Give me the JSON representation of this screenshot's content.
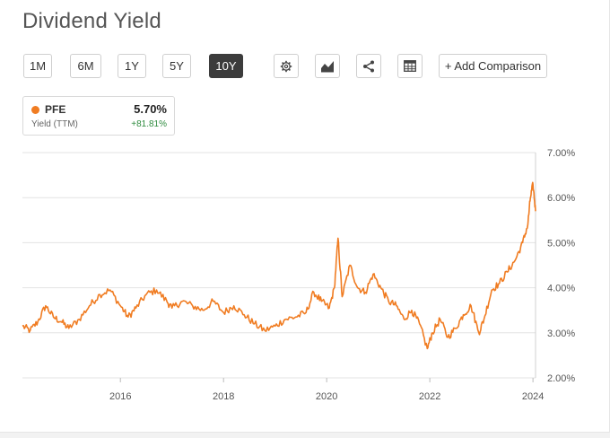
{
  "title": "Dividend Yield",
  "toolbar": {
    "ranges": [
      "1M",
      "6M",
      "1Y",
      "5Y",
      "10Y"
    ],
    "active_range": "10Y",
    "add_comparison": "+ Add Comparison",
    "icons": [
      "gear-icon",
      "chart-type-icon",
      "share-icon",
      "table-icon"
    ]
  },
  "legend": {
    "ticker": "PFE",
    "value": "5.70%",
    "label": "Yield (TTM)",
    "change": "+81.81%",
    "color": "#f07c22",
    "change_color": "#2e8b3e"
  },
  "chart_data": {
    "type": "line",
    "title": "",
    "xlabel": "",
    "ylabel": "",
    "x_ticks": [
      "2016",
      "2018",
      "2020",
      "2022",
      "2024"
    ],
    "y_ticks": [
      "7.00%",
      "6.00%",
      "5.00%",
      "4.00%",
      "3.00%",
      "2.00%"
    ],
    "ylim": [
      2.0,
      7.0
    ],
    "xlim": [
      2014.1,
      2024.05
    ],
    "grid": true,
    "series": [
      {
        "name": "PFE",
        "color": "#f07c22",
        "x": [
          2014.1,
          2014.25,
          2014.4,
          2014.55,
          2014.7,
          2014.85,
          2015.0,
          2015.2,
          2015.4,
          2015.6,
          2015.8,
          2016.0,
          2016.15,
          2016.3,
          2016.5,
          2016.7,
          2016.9,
          2017.0,
          2017.2,
          2017.4,
          2017.6,
          2017.8,
          2018.0,
          2018.2,
          2018.4,
          2018.6,
          2018.8,
          2019.0,
          2019.2,
          2019.4,
          2019.6,
          2019.75,
          2019.9,
          2020.05,
          2020.15,
          2020.22,
          2020.3,
          2020.45,
          2020.6,
          2020.75,
          2020.9,
          2021.05,
          2021.2,
          2021.35,
          2021.5,
          2021.65,
          2021.8,
          2021.95,
          2022.05,
          2022.2,
          2022.35,
          2022.5,
          2022.65,
          2022.8,
          2022.95,
          2023.05,
          2023.2,
          2023.35,
          2023.5,
          2023.65,
          2023.8,
          2023.9,
          2023.95,
          2024.0,
          2024.05
        ],
        "values": [
          3.15,
          3.05,
          3.25,
          3.6,
          3.35,
          3.25,
          3.1,
          3.3,
          3.6,
          3.85,
          3.95,
          3.6,
          3.35,
          3.55,
          3.85,
          3.95,
          3.7,
          3.55,
          3.7,
          3.6,
          3.5,
          3.7,
          3.45,
          3.6,
          3.4,
          3.2,
          3.05,
          3.15,
          3.3,
          3.35,
          3.45,
          3.9,
          3.7,
          3.55,
          4.0,
          5.1,
          3.8,
          4.5,
          4.0,
          3.9,
          4.3,
          4.0,
          3.7,
          3.6,
          3.3,
          3.5,
          3.2,
          2.65,
          3.0,
          3.3,
          2.9,
          3.1,
          3.4,
          3.6,
          3.0,
          3.3,
          3.95,
          4.1,
          4.35,
          4.6,
          5.0,
          5.4,
          6.0,
          6.3,
          5.7
        ]
      }
    ]
  }
}
